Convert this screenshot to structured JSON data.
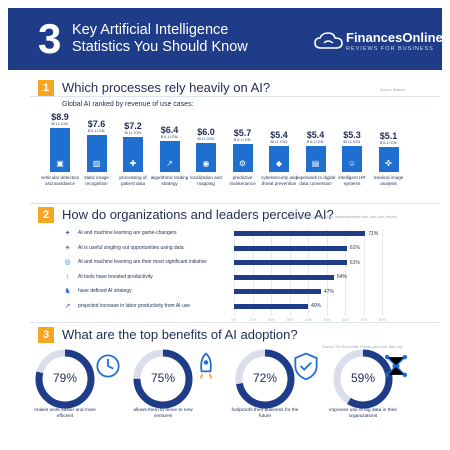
{
  "header": {
    "number": "3",
    "title": "Key Artificial Intelligence Statistics You Should Know",
    "brand": "FinancesOnline",
    "brand_sub": "REVIEWS FOR BUSINESS"
  },
  "section1": {
    "number": "1",
    "title": "Which processes rely heavily on AI?",
    "source": "Source: Statista",
    "subtitle": "Global AI ranked by revenue of use cases:"
  },
  "section2": {
    "number": "2",
    "title": "How do organizations and leaders perceive AI?",
    "source": "Sources: MemSQL, Accenture, narrativescience.com, pwc.com, mit.edu"
  },
  "section3": {
    "number": "3",
    "title": "What are the top benefits of AI adoption?",
    "source": "Source: The Economist, Forbes, pwc.com, Bain.org"
  },
  "chart_data": [
    {
      "type": "bar",
      "title": "Global AI ranked by revenue of use cases:",
      "unit_label": "BILLION",
      "categories": [
        "vehicular detection and avoidance",
        "static image recognition",
        "processing of patient data",
        "algorithmic trading strategy",
        "localization and mapping",
        "predictive maintenance",
        "cybersecurity and threat prevention",
        "paperwork to digital data conversion",
        "intelligent HR systems",
        "medical image analysis"
      ],
      "values": [
        8.9,
        7.6,
        7.2,
        6.4,
        6.0,
        5.7,
        5.4,
        5.4,
        5.3,
        5.1
      ],
      "value_labels": [
        "$8.9",
        "$7.6",
        "$7.2",
        "$6.4",
        "$6.0",
        "$5.7",
        "$5.4",
        "$5.4",
        "$5.3",
        "$5.1"
      ],
      "icons": [
        "car-icon",
        "image-icon",
        "patient-data-icon",
        "trading-icon",
        "map-icon",
        "maintenance-icon",
        "shield-icon",
        "document-icon",
        "hr-icon",
        "medical-image-icon"
      ],
      "ylim": [
        0,
        9
      ],
      "color": "#1f6fd1"
    },
    {
      "type": "bar",
      "orientation": "horizontal",
      "categories": [
        "AI and machine learning are game-changers",
        "AI is useful singling out opportunities using data",
        "AI and machine learning are their most significant initiative",
        "AI tools have boosted productivity",
        "have defined AI strategy",
        "projected increase in labor productivity from AI use"
      ],
      "values": [
        71,
        61,
        61,
        54,
        47,
        40
      ],
      "value_labels": [
        "71%",
        "61%",
        "61%",
        "54%",
        "47%",
        "40%"
      ],
      "icons": [
        "gamepad-icon",
        "bulb-icon",
        "target-icon",
        "productivity-icon",
        "strategy-icon",
        "growth-icon"
      ],
      "xlim": [
        0,
        80
      ],
      "ticks": [
        "0%",
        "10%",
        "20%",
        "30%",
        "40%",
        "50%",
        "60%",
        "70%",
        "80%"
      ],
      "color": "#1f3c88"
    },
    {
      "type": "pie",
      "style": "donut-gauges",
      "categories": [
        "makes work easier and more efficient",
        "allows them to move to new ventures",
        "foolproofs their business for the future",
        "improves use of big data in their organizations"
      ],
      "values": [
        79,
        75,
        72,
        59
      ],
      "value_labels": [
        "79%",
        "75%",
        "72%",
        "59%"
      ],
      "icons": [
        "clock-icon",
        "rocket-icon",
        "shield-check-icon",
        "network-icon"
      ],
      "color_fill": "#1f3c88",
      "color_track": "#d9deea"
    }
  ]
}
